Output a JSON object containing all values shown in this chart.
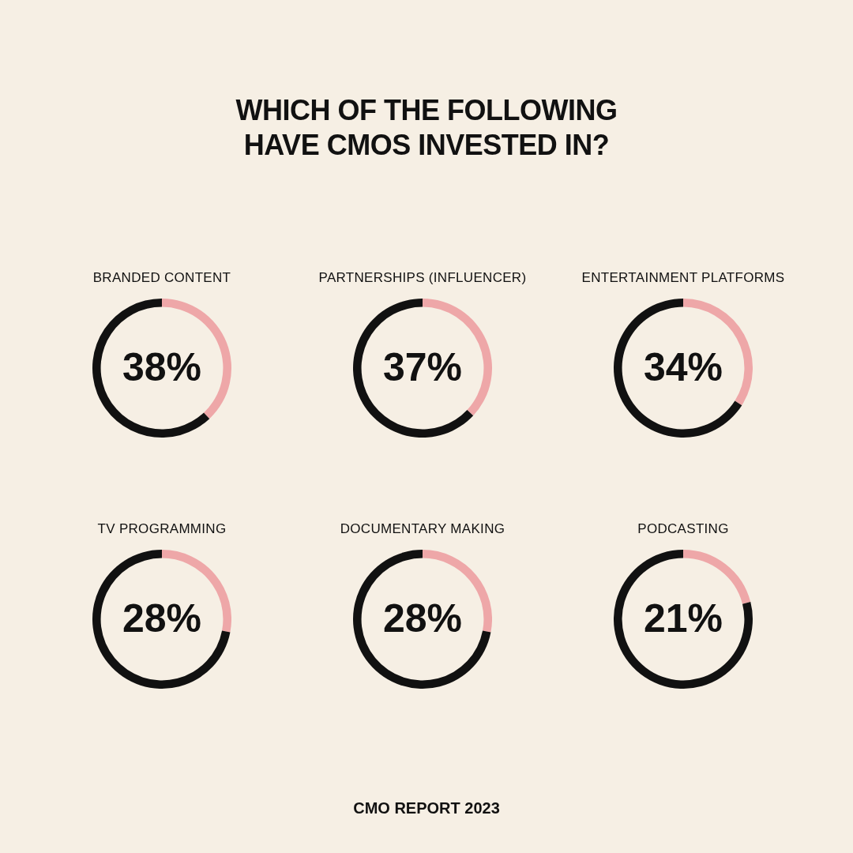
{
  "chart_data": [
    {
      "type": "other",
      "title": "WHICH OF THE FOLLOWING HAVE CMOS INVESTED IN?"
    },
    {
      "type": "donut",
      "title": "BRANDED CONTENT",
      "categories": [
        null,
        null
      ],
      "values": [
        38,
        62
      ],
      "colors": [
        "#eea7a8",
        "#111111"
      ],
      "annotations": [
        "38%"
      ]
    },
    {
      "type": "donut",
      "title": "PARTNERSHIPS (INFLUENCER)",
      "categories": [
        null,
        null
      ],
      "values": [
        37,
        63
      ],
      "colors": [
        "#eea7a8",
        "#111111"
      ],
      "annotations": [
        "37%"
      ]
    },
    {
      "type": "donut",
      "title": "ENTERTAINMENT PLATFORMS",
      "categories": [
        null,
        null
      ],
      "values": [
        34,
        66
      ],
      "colors": [
        "#eea7a8",
        "#111111"
      ],
      "annotations": [
        "34%"
      ]
    },
    {
      "type": "donut",
      "title": "TV PROGRAMMING",
      "categories": [
        null,
        null
      ],
      "values": [
        28,
        72
      ],
      "colors": [
        "#eea7a8",
        "#111111"
      ],
      "annotations": [
        "28%"
      ]
    },
    {
      "type": "donut",
      "title": "DOCUMENTARY MAKING",
      "categories": [
        null,
        null
      ],
      "values": [
        28,
        72
      ],
      "colors": [
        "#eea7a8",
        "#111111"
      ],
      "annotations": [
        "28%"
      ]
    },
    {
      "type": "donut",
      "title": "PODCASTING",
      "categories": [
        null,
        null
      ],
      "values": [
        21,
        79
      ],
      "colors": [
        "#eea7a8",
        "#111111"
      ],
      "annotations": [
        "21%"
      ]
    },
    {
      "type": "other",
      "annotations": [
        "CMO REPORT 2023"
      ]
    }
  ]
}
